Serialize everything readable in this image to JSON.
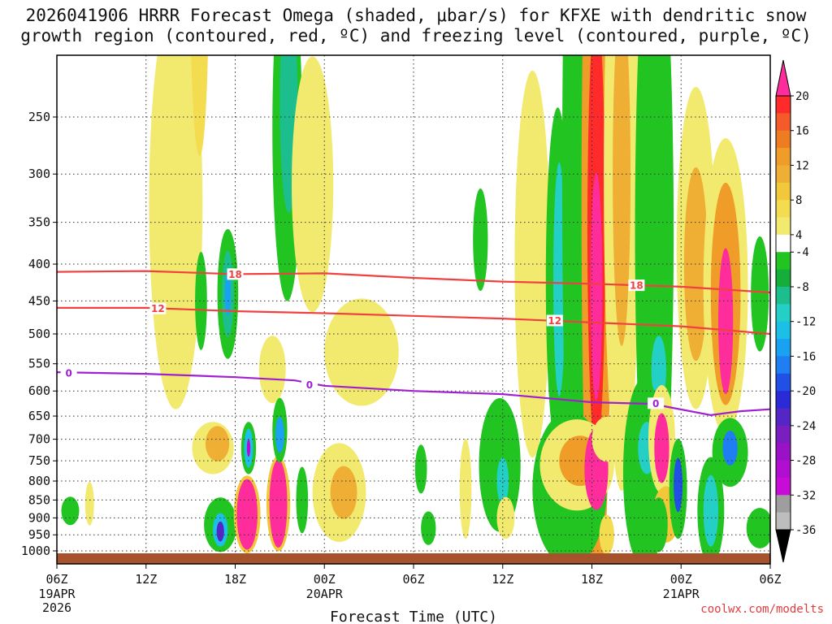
{
  "header": {
    "title_line1": "2026041906 HRRR Forecast Omega (shaded, μbar/s) for KFXE with dendritic snow",
    "title_line2": "growth region (contoured, red, ºC) and freezing level (contoured, purple, ºC)"
  },
  "footer": {
    "credit": "coolwx.com/modelts"
  },
  "chart_data": {
    "type": "heatmap",
    "title": "2026041906 HRRR Forecast Omega (shaded, μbar/s) for KFXE with dendritic snow growth region (contoured, red, ºC) and freezing level (contoured, purple, ºC)",
    "xlabel": "Forecast Time (UTC)",
    "ylabel": "",
    "x_range_hours": [
      0,
      48
    ],
    "y_range_hpa": [
      200,
      1030
    ],
    "x_ticks": [
      {
        "h": 0,
        "label": "06Z",
        "sub": [
          "19APR",
          "2026"
        ]
      },
      {
        "h": 6,
        "label": "12Z",
        "sub": []
      },
      {
        "h": 12,
        "label": "18Z",
        "sub": []
      },
      {
        "h": 18,
        "label": "00Z",
        "sub": [
          "20APR"
        ]
      },
      {
        "h": 24,
        "label": "06Z",
        "sub": []
      },
      {
        "h": 30,
        "label": "12Z",
        "sub": []
      },
      {
        "h": 36,
        "label": "18Z",
        "sub": []
      },
      {
        "h": 42,
        "label": "00Z",
        "sub": [
          "21APR"
        ]
      },
      {
        "h": 48,
        "label": "06Z",
        "sub": []
      }
    ],
    "y_ticks": [
      250,
      300,
      350,
      400,
      450,
      500,
      550,
      600,
      650,
      700,
      750,
      800,
      850,
      900,
      950,
      1000
    ],
    "colorbar": {
      "labels": [
        20,
        16,
        12,
        8,
        4,
        -4,
        -8,
        -12,
        -16,
        -20,
        -24,
        -28,
        -32,
        -36
      ],
      "bins": [
        {
          "lo": 20,
          "hi": null,
          "color": "#ff2d9b"
        },
        {
          "lo": 18,
          "hi": 20,
          "color": "#ff2a2a"
        },
        {
          "lo": 16,
          "hi": 18,
          "color": "#f45a2a"
        },
        {
          "lo": 14,
          "hi": 16,
          "color": "#ee7d22"
        },
        {
          "lo": 12,
          "hi": 14,
          "color": "#ef9c28"
        },
        {
          "lo": 10,
          "hi": 12,
          "color": "#eeaf34"
        },
        {
          "lo": 8,
          "hi": 10,
          "color": "#f0c83a"
        },
        {
          "lo": 6,
          "hi": 8,
          "color": "#f3dc50"
        },
        {
          "lo": 4,
          "hi": 6,
          "color": "#f2ea6e"
        },
        {
          "lo": -4,
          "hi": 4,
          "color": "#ffffff"
        },
        {
          "lo": -6,
          "hi": -4,
          "color": "#22c422"
        },
        {
          "lo": -8,
          "hi": -6,
          "color": "#16ae3a"
        },
        {
          "lo": -10,
          "hi": -8,
          "color": "#1dbe8e"
        },
        {
          "lo": -12,
          "hi": -10,
          "color": "#24cfc6"
        },
        {
          "lo": -14,
          "hi": -12,
          "color": "#1cc0e6"
        },
        {
          "lo": -16,
          "hi": -14,
          "color": "#1aa2f2"
        },
        {
          "lo": -18,
          "hi": -16,
          "color": "#1f7ff2"
        },
        {
          "lo": -20,
          "hi": -18,
          "color": "#2050e6"
        },
        {
          "lo": -22,
          "hi": -20,
          "color": "#2a2ad6"
        },
        {
          "lo": -24,
          "hi": -22,
          "color": "#5526c6"
        },
        {
          "lo": -26,
          "hi": -24,
          "color": "#7a1ec0"
        },
        {
          "lo": -28,
          "hi": -26,
          "color": "#9a12c6"
        },
        {
          "lo": -30,
          "hi": -28,
          "color": "#b10ed2"
        },
        {
          "lo": -32,
          "hi": -30,
          "color": "#c80cd8"
        },
        {
          "lo": -34,
          "hi": -32,
          "color": "#9e9e9e"
        },
        {
          "lo": -36,
          "hi": -34,
          "color": "#bdbdbd"
        },
        {
          "lo": null,
          "hi": -36,
          "color": "#000000"
        }
      ]
    },
    "omega_cells": [
      {
        "t": 0.9,
        "p": 880,
        "dt": 0.6,
        "dp": 40,
        "v": -6
      },
      {
        "t": 2.2,
        "p": 860,
        "dt": 0.3,
        "dp": 60,
        "v": 5
      },
      {
        "t": 8.0,
        "p": 330,
        "dt": 1.8,
        "dp": 190,
        "v": 5
      },
      {
        "t": 9.6,
        "p": 170,
        "dt": 0.6,
        "dp": 80,
        "v": 6
      },
      {
        "t": 9.7,
        "p": 450,
        "dt": 0.4,
        "dp": 70,
        "v": -6
      },
      {
        "t": 11.5,
        "p": 440,
        "dt": 0.7,
        "dp": 90,
        "v": -6
      },
      {
        "t": 11.5,
        "p": 440,
        "dt": 0.4,
        "dp": 60,
        "v": -10
      },
      {
        "t": 11.5,
        "p": 440,
        "dt": 0.2,
        "dp": 30,
        "v": -16
      },
      {
        "t": 15.5,
        "p": 260,
        "dt": 1.0,
        "dp": 130,
        "v": -6
      },
      {
        "t": 15.6,
        "p": 240,
        "dt": 0.6,
        "dp": 80,
        "v": -10
      },
      {
        "t": 17.2,
        "p": 310,
        "dt": 1.4,
        "dp": 120,
        "v": 5
      },
      {
        "t": 20.5,
        "p": 530,
        "dt": 2.5,
        "dp": 90,
        "v": 5
      },
      {
        "t": 14.5,
        "p": 560,
        "dt": 0.9,
        "dp": 60,
        "v": 5
      },
      {
        "t": 28.5,
        "p": 370,
        "dt": 0.5,
        "dp": 60,
        "v": -6
      },
      {
        "t": 32.0,
        "p": 400,
        "dt": 1.2,
        "dp": 220,
        "v": 5
      },
      {
        "t": 33.7,
        "p": 420,
        "dt": 0.8,
        "dp": 210,
        "v": -6
      },
      {
        "t": 33.8,
        "p": 420,
        "dt": 0.4,
        "dp": 150,
        "v": -12
      },
      {
        "t": 35.0,
        "p": 300,
        "dt": 1.0,
        "dp": 260,
        "v": -6
      },
      {
        "t": 36.3,
        "p": 300,
        "dt": 1.5,
        "dp": 330,
        "v": 5
      },
      {
        "t": 36.3,
        "p": 330,
        "dt": 1.0,
        "dp": 290,
        "v": 12
      },
      {
        "t": 36.3,
        "p": 360,
        "dt": 0.6,
        "dp": 220,
        "v": 18
      },
      {
        "t": 36.3,
        "p": 430,
        "dt": 0.4,
        "dp": 150,
        "v": 22
      },
      {
        "t": 38.0,
        "p": 300,
        "dt": 1.2,
        "dp": 230,
        "v": 5
      },
      {
        "t": 38.0,
        "p": 300,
        "dt": 0.6,
        "dp": 150,
        "v": 10
      },
      {
        "t": 40.2,
        "p": 360,
        "dt": 1.3,
        "dp": 280,
        "v": -6
      },
      {
        "t": 40.5,
        "p": 560,
        "dt": 0.5,
        "dp": 60,
        "v": -12
      },
      {
        "t": 43.0,
        "p": 380,
        "dt": 1.3,
        "dp": 180,
        "v": 5
      },
      {
        "t": 43.0,
        "p": 400,
        "dt": 0.8,
        "dp": 120,
        "v": 10
      },
      {
        "t": 45.0,
        "p": 430,
        "dt": 1.5,
        "dp": 190,
        "v": 5
      },
      {
        "t": 45.0,
        "p": 440,
        "dt": 1.0,
        "dp": 150,
        "v": 12
      },
      {
        "t": 45.0,
        "p": 480,
        "dt": 0.5,
        "dp": 110,
        "v": 22
      },
      {
        "t": 47.3,
        "p": 440,
        "dt": 0.6,
        "dp": 80,
        "v": -6
      },
      {
        "t": 10.5,
        "p": 720,
        "dt": 1.4,
        "dp": 60,
        "v": 5
      },
      {
        "t": 10.8,
        "p": 710,
        "dt": 0.8,
        "dp": 40,
        "v": 10
      },
      {
        "t": 11.0,
        "p": 920,
        "dt": 1.1,
        "dp": 80,
        "v": -6
      },
      {
        "t": 11.0,
        "p": 935,
        "dt": 0.5,
        "dp": 50,
        "v": -14
      },
      {
        "t": 11.0,
        "p": 940,
        "dt": 0.25,
        "dp": 30,
        "v": -24
      },
      {
        "t": 12.8,
        "p": 890,
        "dt": 0.9,
        "dp": 110,
        "v": 8
      },
      {
        "t": 12.8,
        "p": 890,
        "dt": 0.7,
        "dp": 100,
        "v": 22
      },
      {
        "t": 12.9,
        "p": 720,
        "dt": 0.5,
        "dp": 60,
        "v": -6
      },
      {
        "t": 12.9,
        "p": 720,
        "dt": 0.3,
        "dp": 45,
        "v": -14
      },
      {
        "t": 12.9,
        "p": 720,
        "dt": 0.12,
        "dp": 20,
        "v": -30
      },
      {
        "t": 14.9,
        "p": 860,
        "dt": 0.8,
        "dp": 130,
        "v": 8
      },
      {
        "t": 14.9,
        "p": 860,
        "dt": 0.6,
        "dp": 120,
        "v": 22
      },
      {
        "t": 15.0,
        "p": 680,
        "dt": 0.5,
        "dp": 70,
        "v": -6
      },
      {
        "t": 15.0,
        "p": 690,
        "dt": 0.3,
        "dp": 40,
        "v": -16
      },
      {
        "t": 16.5,
        "p": 850,
        "dt": 0.4,
        "dp": 90,
        "v": -6
      },
      {
        "t": 19.0,
        "p": 830,
        "dt": 1.8,
        "dp": 130,
        "v": 5
      },
      {
        "t": 19.3,
        "p": 830,
        "dt": 0.9,
        "dp": 70,
        "v": 10
      },
      {
        "t": 24.5,
        "p": 770,
        "dt": 0.4,
        "dp": 60,
        "v": -6
      },
      {
        "t": 25.0,
        "p": 930,
        "dt": 0.5,
        "dp": 50,
        "v": -6
      },
      {
        "t": 27.5,
        "p": 820,
        "dt": 0.4,
        "dp": 130,
        "v": 5
      },
      {
        "t": 29.8,
        "p": 760,
        "dt": 1.4,
        "dp": 160,
        "v": -6
      },
      {
        "t": 30.0,
        "p": 800,
        "dt": 0.4,
        "dp": 60,
        "v": -12
      },
      {
        "t": 30.2,
        "p": 900,
        "dt": 0.6,
        "dp": 60,
        "v": 5
      },
      {
        "t": 34.5,
        "p": 820,
        "dt": 2.5,
        "dp": 200,
        "v": -6
      },
      {
        "t": 35.0,
        "p": 760,
        "dt": 2.5,
        "dp": 110,
        "v": 5
      },
      {
        "t": 35.2,
        "p": 750,
        "dt": 1.4,
        "dp": 60,
        "v": 12
      },
      {
        "t": 36.3,
        "p": 770,
        "dt": 0.8,
        "dp": 100,
        "v": 22
      },
      {
        "t": 37.0,
        "p": 700,
        "dt": 1.0,
        "dp": 50,
        "v": 5
      },
      {
        "t": 37.0,
        "p": 950,
        "dt": 0.5,
        "dp": 60,
        "v": 6
      },
      {
        "t": 39.5,
        "p": 780,
        "dt": 1.4,
        "dp": 230,
        "v": -6
      },
      {
        "t": 39.7,
        "p": 720,
        "dt": 0.6,
        "dp": 60,
        "v": -12
      },
      {
        "t": 40.7,
        "p": 700,
        "dt": 0.9,
        "dp": 120,
        "v": 5
      },
      {
        "t": 40.7,
        "p": 720,
        "dt": 0.5,
        "dp": 80,
        "v": 22
      },
      {
        "t": 41.0,
        "p": 890,
        "dt": 0.9,
        "dp": 80,
        "v": 8
      },
      {
        "t": 41.8,
        "p": 820,
        "dt": 0.6,
        "dp": 130,
        "v": -6
      },
      {
        "t": 41.8,
        "p": 810,
        "dt": 0.3,
        "dp": 70,
        "v": -20
      },
      {
        "t": 40.5,
        "p": 920,
        "dt": 0.6,
        "dp": 80,
        "v": -6
      },
      {
        "t": 44.0,
        "p": 880,
        "dt": 0.9,
        "dp": 150,
        "v": -6
      },
      {
        "t": 44.0,
        "p": 880,
        "dt": 0.5,
        "dp": 100,
        "v": -12
      },
      {
        "t": 45.3,
        "p": 730,
        "dt": 1.2,
        "dp": 80,
        "v": -6
      },
      {
        "t": 45.3,
        "p": 720,
        "dt": 0.5,
        "dp": 40,
        "v": -18
      },
      {
        "t": 47.3,
        "p": 930,
        "dt": 0.9,
        "dp": 60,
        "v": -6
      }
    ],
    "dgz_contours": [
      {
        "value": 18,
        "label": "18",
        "color": "#f04040",
        "points": [
          [
            0,
            410
          ],
          [
            6,
            409
          ],
          [
            12,
            413
          ],
          [
            18,
            412
          ],
          [
            24,
            418
          ],
          [
            30,
            423
          ],
          [
            36,
            426
          ],
          [
            42,
            430
          ],
          [
            48,
            438
          ]
        ],
        "label_at": [
          [
            12,
            413
          ],
          [
            39,
            428
          ]
        ]
      },
      {
        "value": 12,
        "label": "12",
        "color": "#f04040",
        "points": [
          [
            0,
            460
          ],
          [
            6,
            460
          ],
          [
            12,
            465
          ],
          [
            18,
            468
          ],
          [
            24,
            472
          ],
          [
            30,
            476
          ],
          [
            36,
            482
          ],
          [
            42,
            488
          ],
          [
            48,
            500
          ]
        ],
        "label_at": [
          [
            6.8,
            461
          ],
          [
            33.5,
            479
          ]
        ]
      }
    ],
    "freezing_level": {
      "value": 0,
      "label": "0",
      "color": "#a020d0",
      "points": [
        [
          0,
          565
        ],
        [
          6,
          568
        ],
        [
          12,
          574
        ],
        [
          16,
          580
        ],
        [
          18,
          590
        ],
        [
          24,
          600
        ],
        [
          30,
          606
        ],
        [
          36,
          622
        ],
        [
          40,
          625
        ],
        [
          44,
          648
        ],
        [
          46,
          640
        ],
        [
          48,
          636
        ]
      ],
      "label_at": [
        [
          0.8,
          566
        ],
        [
          17,
          588
        ],
        [
          40.3,
          624
        ]
      ]
    }
  }
}
